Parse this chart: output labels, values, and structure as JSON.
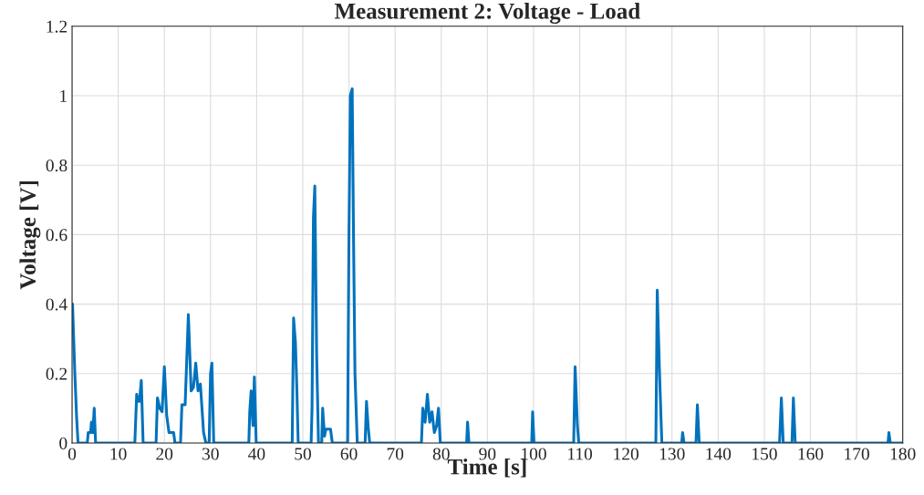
{
  "chart_data": {
    "type": "line",
    "title": "Measurement 2: Voltage - Load",
    "xlabel": "Time [s]",
    "ylabel": "Voltage [V]",
    "x": [
      0,
      0.1,
      0.6,
      1,
      1.3,
      3.3,
      3.5,
      4.0,
      4.2,
      4.5,
      4.8,
      5.1,
      13.6,
      14,
      14.3,
      14.6,
      15,
      15.4,
      18.2,
      18.5,
      19,
      19.5,
      20,
      20.5,
      21,
      22,
      22.3,
      23.5,
      23.8,
      24.5,
      25.2,
      25.8,
      26.3,
      26.8,
      27.3,
      27.8,
      28.5,
      29,
      29.7,
      30,
      30.3,
      30.7,
      38.3,
      38.5,
      38.8,
      39.2,
      39.5,
      39.9,
      47.7,
      48,
      48.4,
      48.7,
      49,
      51.8,
      52,
      52.3,
      52.6,
      53,
      53.4,
      54.1,
      54.3,
      54.7,
      55,
      56,
      56.4,
      59.7,
      60,
      60.3,
      60.7,
      61,
      61.3,
      61.8,
      63.5,
      63.8,
      64.2,
      64.5,
      75.7,
      76,
      76.5,
      77,
      77.5,
      78,
      78.5,
      79,
      79.4,
      79.8,
      85.5,
      85.7,
      86,
      99.6,
      99.8,
      100.1,
      108.7,
      109,
      109.5,
      109.8,
      126.5,
      126.8,
      127.3,
      127.8,
      132.1,
      132.3,
      132.6,
      135.2,
      135.5,
      135.9,
      153.3,
      153.7,
      154.1,
      156,
      156.3,
      156.7,
      176.8,
      177,
      177.3,
      180
    ],
    "series": [
      {
        "color": "#0072bd",
        "values": [
          0.4,
          0.4,
          0.2,
          0.07,
          0,
          0,
          0.03,
          0.03,
          0.06,
          0.03,
          0.1,
          0,
          0,
          0.14,
          0.12,
          0.12,
          0.18,
          0,
          0,
          0.13,
          0.1,
          0.09,
          0.22,
          0.08,
          0.03,
          0.03,
          0,
          0,
          0.11,
          0.11,
          0.37,
          0.15,
          0.16,
          0.23,
          0.15,
          0.17,
          0.03,
          0,
          0,
          0.2,
          0.23,
          0,
          0,
          0.09,
          0.15,
          0.05,
          0.19,
          0,
          0,
          0.36,
          0.29,
          0.16,
          0,
          0,
          0.1,
          0.65,
          0.74,
          0.25,
          0,
          0,
          0.1,
          0.02,
          0.04,
          0.04,
          0,
          0,
          0.6,
          1.0,
          1.02,
          0.58,
          0.2,
          0,
          0,
          0.12,
          0.04,
          0,
          0,
          0.1,
          0.06,
          0.14,
          0.06,
          0.09,
          0.03,
          0.05,
          0.1,
          0,
          0,
          0.06,
          0,
          0,
          0.09,
          0,
          0,
          0.22,
          0.05,
          0,
          0,
          0.44,
          0.2,
          0,
          0,
          0.03,
          0,
          0,
          0.11,
          0,
          0,
          0.13,
          0,
          0,
          0.13,
          0,
          0,
          0.03,
          0,
          0
        ]
      }
    ],
    "xlim": [
      0,
      180
    ],
    "xticks": [
      0,
      10,
      20,
      30,
      40,
      50,
      60,
      70,
      80,
      90,
      100,
      110,
      120,
      130,
      140,
      150,
      160,
      170,
      180
    ],
    "ylim": [
      0,
      1.2
    ],
    "yticks": [
      0,
      0.2,
      0.4,
      0.6,
      0.8,
      1,
      1.2
    ],
    "grid": true
  }
}
